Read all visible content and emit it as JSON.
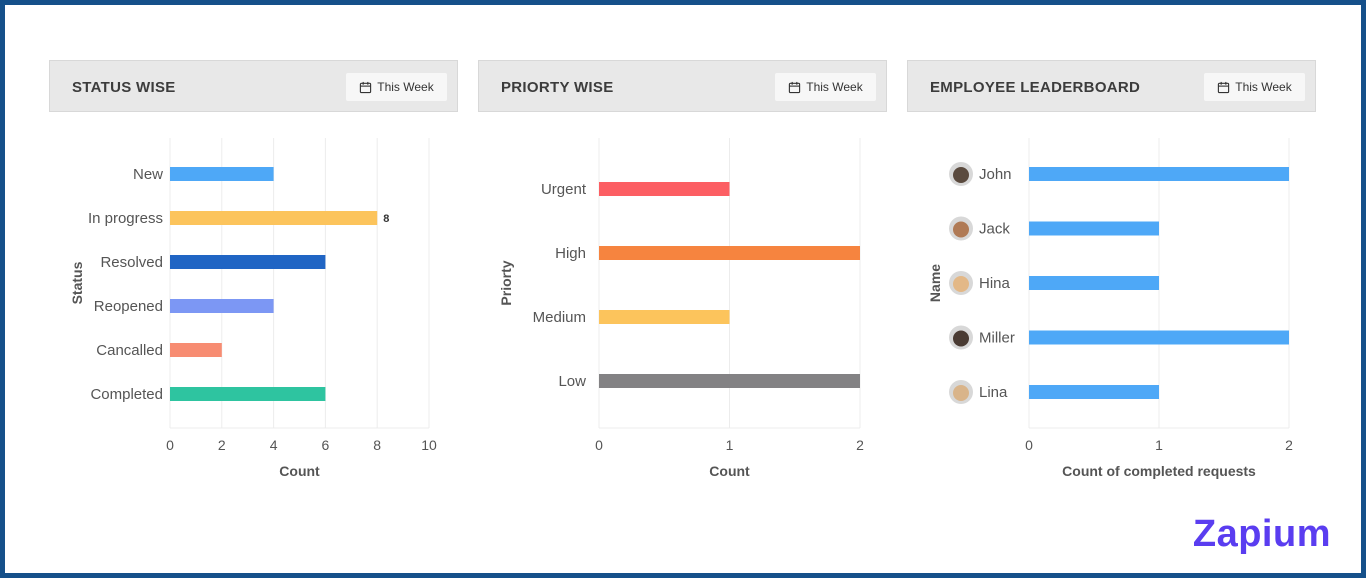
{
  "panels": [
    {
      "title": "STATUS WISE",
      "filter_label": "This Week"
    },
    {
      "title": "PRIORTY WISE",
      "filter_label": "This Week"
    },
    {
      "title": "EMPLOYEE LEADERBOARD",
      "filter_label": "This Week"
    }
  ],
  "chart_data": [
    {
      "type": "bar",
      "orientation": "horizontal",
      "categories": [
        "New",
        "In progress",
        "Resolved",
        "Reopened",
        "Cancalled",
        "Completed"
      ],
      "values": [
        4,
        8,
        6,
        4,
        2,
        6
      ],
      "colors": [
        "#4ea8f7",
        "#fcc45c",
        "#2065c4",
        "#7c97f4",
        "#f78c72",
        "#2ec4a0"
      ],
      "data_labels": [
        null,
        "8",
        null,
        null,
        null,
        null
      ],
      "xlabel": "Count",
      "ylabel": "Status",
      "xlim": [
        0,
        10
      ],
      "xticks": [
        "0",
        "2",
        "4",
        "6",
        "8",
        "10"
      ],
      "grid": true
    },
    {
      "type": "bar",
      "orientation": "horizontal",
      "categories": [
        "Urgent",
        "High",
        "Medium",
        "Low"
      ],
      "values": [
        1,
        2,
        1,
        2
      ],
      "colors": [
        "#fc5e63",
        "#f6843f",
        "#fcc45c",
        "#838284"
      ],
      "xlabel": "Count",
      "ylabel": "Priorty",
      "xlim": [
        0,
        2
      ],
      "xticks": [
        "0",
        "1",
        "2"
      ],
      "grid": true
    },
    {
      "type": "bar",
      "orientation": "horizontal",
      "categories": [
        "John",
        "Jack",
        "Hina",
        "Miller",
        "Lina"
      ],
      "values": [
        2,
        1,
        1,
        2,
        1
      ],
      "colors": [
        "#4ea8f7",
        "#4ea8f7",
        "#4ea8f7",
        "#4ea8f7",
        "#4ea8f7"
      ],
      "avatar_colors": [
        "#5a4a3e",
        "#b07a55",
        "#e3b887",
        "#4a3b33",
        "#d9b48a"
      ],
      "xlabel": "Count of completed requests",
      "ylabel": "Name",
      "xlim": [
        0,
        2
      ],
      "xticks": [
        "0",
        "1",
        "2"
      ],
      "grid": true
    }
  ],
  "brand": {
    "logo": "Zapium",
    "color": "#5a3df0"
  }
}
